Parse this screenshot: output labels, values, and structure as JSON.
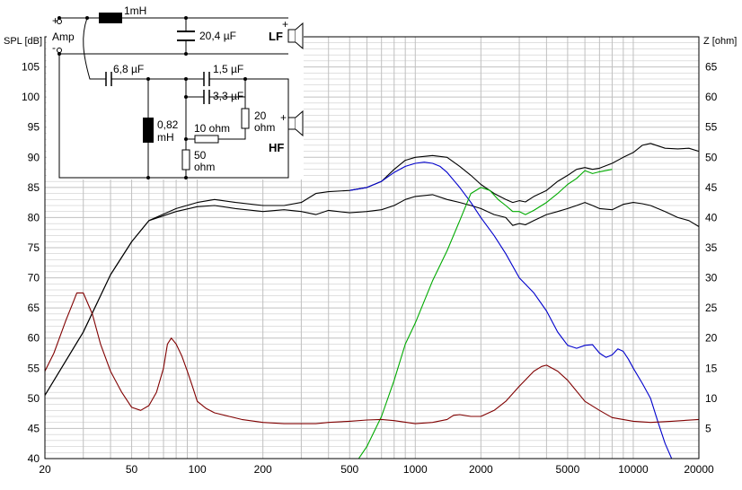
{
  "chart_data": {
    "type": "line",
    "x_scale": "log",
    "xlim": [
      20,
      20000
    ],
    "ylim": [
      40,
      110
    ],
    "y2lim": [
      0,
      70
    ],
    "grid": true,
    "ylabel": "SPL [dB]",
    "y2label": "Z [ohm]",
    "x_ticks": [
      "20",
      "50",
      "100",
      "200",
      "500",
      "1000",
      "2000",
      "5000",
      "10000",
      "20000"
    ],
    "y_ticks": [
      "40",
      "45",
      "50",
      "55",
      "60",
      "65",
      "70",
      "75",
      "80",
      "85",
      "90",
      "95",
      "100",
      "105"
    ],
    "y2_ticks": [
      "5",
      "10",
      "15",
      "20",
      "25",
      "30",
      "35",
      "40",
      "45",
      "50",
      "55",
      "60",
      "65"
    ],
    "colors": {
      "spl_upper": "#000000",
      "spl_lower": "#000000",
      "lf": "#0000cc",
      "hf": "#00aa00",
      "impedance": "#800000",
      "grid": "#c0c0c0"
    },
    "series": [
      {
        "key": "spl_upper",
        "axis": "left",
        "color": "#000000",
        "x": [
          20,
          30,
          40,
          50,
          60,
          80,
          100,
          120,
          150,
          200,
          250,
          300,
          350,
          400,
          500,
          600,
          700,
          800,
          900,
          1000,
          1200,
          1400,
          1600,
          1800,
          2000,
          2300,
          2600,
          2800,
          3000,
          3200,
          3500,
          4000,
          4500,
          5000,
          5500,
          6000,
          6500,
          7000,
          8000,
          9000,
          10000,
          11000,
          12000,
          14000,
          16000,
          18000,
          20000
        ],
        "y": [
          50.5,
          61,
          70.5,
          76,
          79.5,
          81.5,
          82.5,
          83,
          82.5,
          82,
          82,
          82.5,
          84,
          84.3,
          84.5,
          85,
          86,
          88,
          89.5,
          90,
          90.3,
          90,
          88.5,
          87,
          85.5,
          84,
          83,
          82.5,
          82.8,
          82.6,
          83.5,
          84.5,
          86,
          87,
          88,
          88.3,
          88,
          88.2,
          89,
          90,
          90.8,
          92,
          92.3,
          91.5,
          91.4,
          91.5,
          91
        ]
      },
      {
        "key": "spl_lower",
        "axis": "left",
        "color": "#000000",
        "x": [
          20,
          30,
          40,
          50,
          60,
          80,
          100,
          120,
          150,
          200,
          250,
          300,
          350,
          400,
          500,
          600,
          700,
          800,
          900,
          1000,
          1200,
          1400,
          1600,
          1800,
          2000,
          2300,
          2600,
          2800,
          3000,
          3200,
          3500,
          4000,
          4500,
          5000,
          5500,
          6000,
          6500,
          7000,
          8000,
          9000,
          10000,
          11000,
          12000,
          14000,
          16000,
          18000,
          20000
        ],
        "y": [
          50.5,
          61,
          70.5,
          76,
          79.5,
          81,
          81.8,
          82,
          81.5,
          81,
          81.3,
          81,
          80.5,
          81.2,
          80.8,
          81,
          81.3,
          82,
          83,
          83.5,
          83.8,
          83,
          82.5,
          82,
          81.5,
          80.5,
          80,
          78.7,
          79,
          78.8,
          79.5,
          80.5,
          81,
          81.5,
          82,
          82.5,
          82,
          81.5,
          81.3,
          82.2,
          82.5,
          82.3,
          82,
          81,
          80,
          79.5,
          78.5
        ]
      },
      {
        "key": "lf",
        "axis": "left",
        "color": "#0000cc",
        "x": [
          500,
          600,
          700,
          800,
          900,
          1000,
          1100,
          1200,
          1300,
          1400,
          1600,
          1800,
          2000,
          2300,
          2600,
          3000,
          3500,
          4000,
          4500,
          5000,
          5500,
          6000,
          6500,
          7000,
          7500,
          8000,
          8500,
          9000,
          9500,
          10000,
          11000,
          12000,
          13000,
          14000,
          15000,
          16000
        ],
        "y": [
          84.5,
          85,
          86,
          87.5,
          88.5,
          89,
          89.2,
          89,
          88.5,
          87.5,
          85,
          82.5,
          80,
          77,
          74,
          70,
          67.5,
          64.5,
          61,
          58.8,
          58.3,
          58.8,
          58.9,
          57.5,
          56.8,
          57.2,
          58.2,
          57.8,
          56.5,
          55,
          52.5,
          50,
          46,
          42.5,
          40,
          40
        ]
      },
      {
        "key": "hf",
        "axis": "left",
        "color": "#00aa00",
        "x": [
          20,
          200,
          400,
          550,
          600,
          700,
          800,
          900,
          1000,
          1200,
          1400,
          1600,
          1800,
          2000,
          2200,
          2400,
          2600,
          2800,
          3000,
          3200,
          3500,
          4000,
          4500,
          5000,
          5500,
          6000,
          6500,
          7000,
          8000
        ],
        "y": [
          40,
          40,
          40,
          40,
          42,
          47,
          53,
          59,
          62.5,
          69.5,
          74.5,
          79.5,
          84,
          85,
          84.5,
          83,
          82,
          81,
          81,
          80.5,
          81.2,
          82.5,
          84,
          85.5,
          86.5,
          87.8,
          87.3,
          87.6,
          88
        ]
      },
      {
        "key": "impedance",
        "axis": "right",
        "color": "#800000",
        "x": [
          20,
          22,
          25,
          27,
          28,
          30,
          33,
          36,
          40,
          45,
          50,
          55,
          60,
          65,
          70,
          73,
          76,
          80,
          85,
          90,
          95,
          100,
          110,
          120,
          140,
          160,
          200,
          250,
          300,
          350,
          400,
          500,
          600,
          700,
          800,
          1000,
          1200,
          1400,
          1500,
          1600,
          1800,
          2000,
          2300,
          2600,
          3000,
          3500,
          3800,
          4000,
          4500,
          5000,
          6000,
          7000,
          8000,
          10000,
          12000,
          15000,
          20000
        ],
        "y": [
          14.5,
          17.5,
          23,
          26,
          27.5,
          27.5,
          24,
          19,
          14.5,
          11,
          8.5,
          8,
          8.8,
          11,
          15,
          19,
          20,
          19,
          17,
          14.5,
          12,
          9.5,
          8.3,
          7.6,
          7,
          6.5,
          6,
          5.8,
          5.8,
          5.8,
          6,
          6.2,
          6.4,
          6.5,
          6.3,
          5.8,
          6,
          6.5,
          7.2,
          7.3,
          7,
          7,
          8,
          9.5,
          12,
          14.5,
          15.3,
          15.5,
          14.5,
          13,
          9.5,
          8,
          6.8,
          6.2,
          6,
          6.2,
          6.5
        ]
      }
    ]
  },
  "schematic": {
    "amp_label": "Amp",
    "plus": "+",
    "minus": "-",
    "l1_label": "1mH",
    "c1_label": "20,4 µF",
    "lf_label": "LF",
    "c2_label": "6,8 µF",
    "c3_label": "1,5 µF",
    "c4_label": "3,3 µF",
    "l2_label_1": "0,82",
    "l2_label_2": "mH",
    "r1_label_1": "20",
    "r1_label_2": "ohm",
    "r2_label": "10 ohm",
    "r3_label_1": "50",
    "r3_label_2": "ohm",
    "hf_label": "HF"
  }
}
